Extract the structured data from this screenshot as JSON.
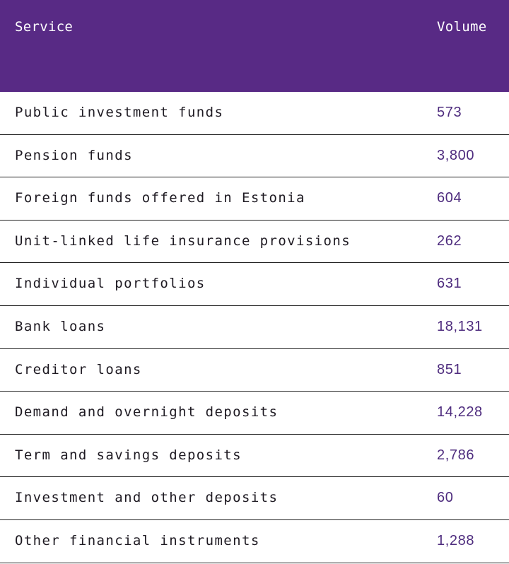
{
  "table": {
    "headers": {
      "service": "Service",
      "volume": "Volume"
    },
    "header_color": "#582a85",
    "value_color": "#4e2c7e",
    "rows": [
      {
        "service": "Public investment funds",
        "volume": "573"
      },
      {
        "service": "Pension funds",
        "volume": "3,800"
      },
      {
        "service": "Foreign funds offered in Estonia",
        "volume": "604"
      },
      {
        "service": "Unit-linked life insurance provisions",
        "volume": "262"
      },
      {
        "service": "Individual portfolios",
        "volume": "631"
      },
      {
        "service": "Bank loans",
        "volume": "18,131"
      },
      {
        "service": "Creditor loans",
        "volume": "851"
      },
      {
        "service": "Demand and overnight deposits",
        "volume": "14,228"
      },
      {
        "service": "Term and savings deposits",
        "volume": "2,786"
      },
      {
        "service": "Investment and other deposits",
        "volume": "60"
      },
      {
        "service": "Other financial instruments",
        "volume": "1,288"
      }
    ]
  }
}
